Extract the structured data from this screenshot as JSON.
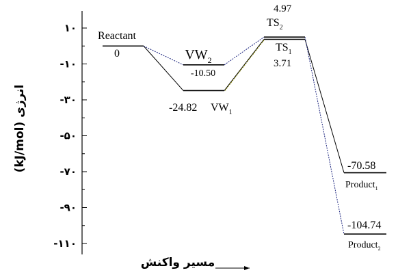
{
  "chart_data": {
    "type": "line",
    "title": "",
    "ylabel": "(kJ/mol) انرژی",
    "xlabel": "مسیر واکنش",
    "ylim": [
      -117,
      17
    ],
    "yticks": [
      10,
      -10,
      -30,
      -50,
      -70,
      -90,
      -110
    ],
    "ytick_labels": [
      "۱۰",
      "-۱۰",
      "-۳۰",
      "-۵۰",
      "-۷۰",
      "-۹۰",
      "-۱۱۰"
    ],
    "states": [
      {
        "id": "reactant",
        "name": "Reactant",
        "value": 0,
        "value_label": "0"
      },
      {
        "id": "vw2",
        "name": "VW",
        "sub": "2",
        "value": -10.5,
        "value_label": "-10.50"
      },
      {
        "id": "vw1",
        "name": "VW",
        "sub": "1",
        "value": -24.82,
        "value_label": "-24.82"
      },
      {
        "id": "ts2",
        "name": "TS",
        "sub": "2",
        "value": 4.97,
        "value_label": "4.97"
      },
      {
        "id": "ts1",
        "name": "TS",
        "sub": "1",
        "value": 3.71,
        "value_label": "3.71"
      },
      {
        "id": "product1",
        "name": "Product",
        "sub": "1",
        "value": -70.58,
        "value_label": "-70.58"
      },
      {
        "id": "product2",
        "name": "Product",
        "sub": "2",
        "value": -104.74,
        "value_label": "-104.74"
      }
    ],
    "paths": [
      {
        "name": "path-1",
        "sequence": [
          "reactant",
          "vw1",
          "ts1",
          "product1"
        ],
        "color": "#000000",
        "dash": "solid"
      },
      {
        "name": "path-2",
        "sequence": [
          "reactant",
          "vw2",
          "ts2",
          "product2"
        ],
        "color": "#1a237e",
        "dash": "dotted"
      }
    ],
    "colors": {
      "axis": "#000000",
      "path1": "#000000",
      "path2": "#1a237e",
      "highlight": "#8a8a00"
    }
  }
}
